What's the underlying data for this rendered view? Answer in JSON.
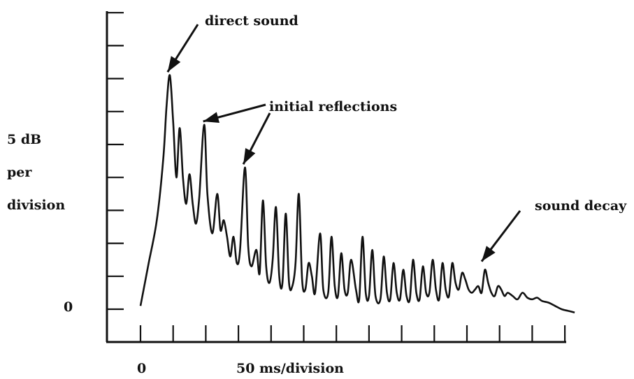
{
  "chart_data": {
    "type": "line",
    "title": "",
    "ylabel_lines": [
      "5 dB",
      "per",
      "division"
    ],
    "xlabel": "50 ms/division",
    "x_tick_label_zero": "0",
    "y_tick_label_zero": "0",
    "x_unit_ms_per_division": 50,
    "y_unit_db_per_division": 5,
    "xlim_divisions": [
      -1,
      13
    ],
    "ylim_divisions": [
      -1,
      9
    ],
    "x_tick_divisions": [
      0,
      1,
      2,
      3,
      4,
      5,
      6,
      7,
      8,
      9,
      10,
      11,
      12,
      13
    ],
    "y_tick_divisions": [
      -1,
      0,
      1,
      2,
      3,
      4,
      5,
      6,
      7,
      8,
      9
    ],
    "grid": false,
    "series": [
      {
        "x": [
          0,
          0.25,
          0.5,
          0.7,
          0.8,
          0.9,
          1.0,
          1.1,
          1.2,
          1.3,
          1.4,
          1.5,
          1.6,
          1.7,
          1.8,
          1.95,
          2.05,
          2.2,
          2.35,
          2.45,
          2.55,
          2.65,
          2.75,
          2.85,
          2.95,
          3.05,
          3.2,
          3.3,
          3.4,
          3.55,
          3.65,
          3.75,
          3.85,
          3.95,
          4.05,
          4.15,
          4.25,
          4.35,
          4.45,
          4.55,
          4.65,
          4.75,
          4.85,
          4.95,
          5.05,
          5.15,
          5.25,
          5.35,
          5.5,
          5.6,
          5.75,
          5.85,
          5.95,
          6.05,
          6.15,
          6.25,
          6.35,
          6.45,
          6.6,
          6.7,
          6.8,
          6.9,
          7.0,
          7.1,
          7.2,
          7.35,
          7.45,
          7.55,
          7.65,
          7.75,
          7.85,
          7.95,
          8.05,
          8.15,
          8.25,
          8.35,
          8.45,
          8.55,
          8.65,
          8.75,
          8.85,
          8.95,
          9.05,
          9.15,
          9.25,
          9.35,
          9.45,
          9.55,
          9.65,
          9.75,
          9.85,
          9.95,
          10.05,
          10.15,
          10.25,
          10.35,
          10.45,
          10.55,
          10.65,
          10.75,
          10.85,
          10.95,
          11.05,
          11.15,
          11.25,
          11.4,
          11.55,
          11.7,
          11.85,
          12.0,
          12.15,
          12.3,
          12.5,
          12.7,
          12.9,
          13.1,
          13.3
        ],
        "y": [
          0.1,
          1.4,
          2.7,
          4.6,
          6.2,
          7.1,
          5.7,
          4.0,
          5.5,
          4.0,
          3.2,
          4.1,
          3.2,
          2.6,
          3.4,
          5.6,
          3.5,
          2.3,
          3.5,
          2.4,
          2.7,
          2.2,
          1.6,
          2.2,
          1.4,
          1.8,
          4.3,
          1.9,
          1.3,
          1.8,
          1.1,
          3.3,
          1.3,
          0.8,
          1.5,
          3.1,
          1.0,
          0.8,
          2.9,
          0.8,
          0.7,
          1.4,
          3.5,
          0.9,
          0.6,
          1.4,
          1.0,
          0.5,
          2.3,
          0.6,
          0.5,
          2.2,
          0.7,
          0.4,
          1.7,
          0.6,
          0.5,
          1.5,
          0.6,
          0.3,
          2.2,
          0.5,
          0.4,
          1.8,
          0.4,
          0.3,
          1.6,
          0.5,
          0.3,
          1.4,
          0.5,
          0.3,
          1.2,
          0.4,
          0.3,
          1.5,
          0.5,
          0.3,
          1.3,
          0.5,
          0.5,
          1.5,
          0.6,
          0.3,
          1.4,
          0.6,
          0.4,
          1.4,
          0.8,
          0.6,
          1.1,
          0.9,
          0.6,
          0.5,
          0.6,
          0.7,
          0.5,
          1.2,
          0.8,
          0.5,
          0.4,
          0.7,
          0.6,
          0.4,
          0.5,
          0.4,
          0.3,
          0.5,
          0.35,
          0.3,
          0.35,
          0.25,
          0.2,
          0.1,
          0.0,
          -0.05,
          -0.1
        ]
      }
    ],
    "annotations": [
      {
        "text": "direct sound",
        "x": 1.9,
        "y": 8.7,
        "target_x": 0.83,
        "target_y": 7.2
      },
      {
        "text": "initial reflections",
        "x": 3.95,
        "y": 6.3,
        "target_x": 1.92,
        "target_y": 5.7
      },
      {
        "text": "initial reflections",
        "x": 3.95,
        "y": 6.3,
        "target_x": 3.15,
        "target_y": 4.4,
        "hidden_text": true
      },
      {
        "text": "sound decay",
        "x": 11.6,
        "y": 3.0,
        "target_x": 10.45,
        "target_y": 1.45
      }
    ]
  }
}
